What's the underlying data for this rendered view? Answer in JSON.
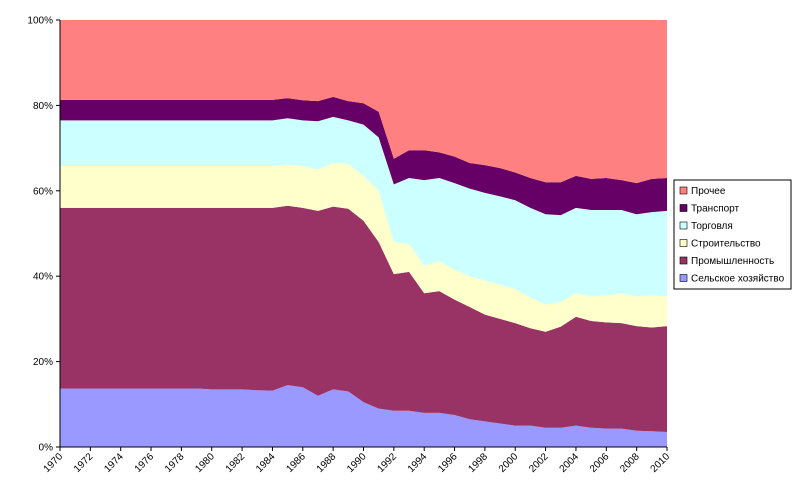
{
  "chart_data": {
    "type": "stacked_area",
    "x": [
      1970,
      1971,
      1972,
      1973,
      1974,
      1975,
      1976,
      1977,
      1978,
      1979,
      1980,
      1981,
      1982,
      1983,
      1984,
      1985,
      1986,
      1987,
      1988,
      1989,
      1990,
      1991,
      1992,
      1993,
      1994,
      1995,
      1996,
      1997,
      1998,
      1999,
      2000,
      2001,
      2002,
      2003,
      2004,
      2005,
      2006,
      2007,
      2008,
      2009,
      2010
    ],
    "xlim": [
      1970,
      2010
    ],
    "xticks": [
      1970,
      1972,
      1974,
      1976,
      1978,
      1980,
      1982,
      1984,
      1986,
      1988,
      1990,
      1992,
      1994,
      1996,
      1998,
      2000,
      2002,
      2004,
      2006,
      2008,
      2010
    ],
    "ylim": [
      0,
      100
    ],
    "yticks": [
      {
        "value": 0,
        "label": "0%"
      },
      {
        "value": 20,
        "label": "20%"
      },
      {
        "value": 40,
        "label": "40%"
      },
      {
        "value": 60,
        "label": "60%"
      },
      {
        "value": 80,
        "label": "80%"
      },
      {
        "value": 100,
        "label": "100%"
      }
    ],
    "series": [
      {
        "name": "Сельское хозяйство",
        "color": "#9999ff",
        "values": [
          13.7,
          13.7,
          13.7,
          13.7,
          13.7,
          13.7,
          13.7,
          13.7,
          13.7,
          13.7,
          13.5,
          13.5,
          13.5,
          13.3,
          13.2,
          14.5,
          14,
          12,
          13.5,
          13,
          10.5,
          9,
          8.5,
          8.5,
          8,
          8,
          7.5,
          6.5,
          6,
          5.5,
          5,
          5,
          4.5,
          4.5,
          5,
          4.5,
          4.3,
          4.3,
          3.8,
          3.7,
          3.5
        ]
      },
      {
        "name": "Промышленность",
        "color": "#993366",
        "values": [
          42.3,
          42.3,
          42.3,
          42.3,
          42.3,
          42.3,
          42.3,
          42.3,
          42.3,
          42.3,
          42.5,
          42.5,
          42.5,
          42.7,
          42.8,
          42,
          42,
          43.3,
          42.8,
          42.8,
          42.5,
          39,
          32,
          32.5,
          28,
          28.5,
          27,
          26.3,
          25,
          24.5,
          24,
          22.8,
          22.5,
          23.7,
          25.5,
          25,
          24.9,
          24.7,
          24.5,
          24.3,
          24.8
        ]
      },
      {
        "name": "Строительство",
        "color": "#ffffcc",
        "values": [
          9.8,
          9.8,
          9.8,
          9.8,
          9.8,
          9.8,
          9.8,
          9.8,
          9.8,
          9.8,
          9.8,
          9.8,
          9.8,
          9.8,
          9.8,
          9.7,
          9.8,
          9.7,
          10.2,
          10.5,
          10.5,
          12,
          7.5,
          6.5,
          6.5,
          7,
          7,
          7.2,
          8,
          8,
          8,
          7.2,
          6.3,
          5.8,
          5.5,
          5.8,
          6.3,
          7,
          7,
          7.5,
          7
        ]
      },
      {
        "name": "Торговля",
        "color": "#ccffff",
        "values": [
          10.7,
          10.7,
          10.7,
          10.7,
          10.7,
          10.7,
          10.7,
          10.7,
          10.7,
          10.7,
          10.7,
          10.7,
          10.7,
          10.7,
          10.7,
          10.8,
          10.7,
          11.3,
          10.8,
          10.2,
          12,
          12.5,
          13.5,
          15.5,
          20,
          19.5,
          20.3,
          20.5,
          20.5,
          20.7,
          20.8,
          21,
          21.2,
          20.3,
          20,
          20.2,
          20,
          19.5,
          19.2,
          19.5,
          20
        ]
      },
      {
        "name": "Транспорт",
        "color": "#660066",
        "values": [
          4.8,
          4.8,
          4.8,
          4.8,
          4.8,
          4.8,
          4.8,
          4.8,
          4.8,
          4.8,
          4.8,
          4.8,
          4.8,
          4.8,
          4.8,
          4.7,
          4.7,
          4.7,
          4.7,
          4.5,
          5,
          6,
          6,
          6.5,
          7,
          6,
          6.2,
          6,
          6.5,
          6.6,
          6.5,
          7,
          7.5,
          7.7,
          7.5,
          7.3,
          7.5,
          7,
          7.3,
          7.8,
          7.7
        ]
      },
      {
        "name": "Прочее",
        "color": "#ff8080",
        "values": [
          18.7,
          18.7,
          18.7,
          18.7,
          18.7,
          18.7,
          18.7,
          18.7,
          18.7,
          18.7,
          18.7,
          18.7,
          18.7,
          18.7,
          18.7,
          18.3,
          18.8,
          19,
          18,
          19,
          19.5,
          21.5,
          32.5,
          30.5,
          30.5,
          31,
          32,
          33.5,
          34,
          34.7,
          35.7,
          37,
          38,
          38,
          36.5,
          37.2,
          37,
          37.5,
          38.2,
          37.2,
          37
        ]
      }
    ]
  }
}
